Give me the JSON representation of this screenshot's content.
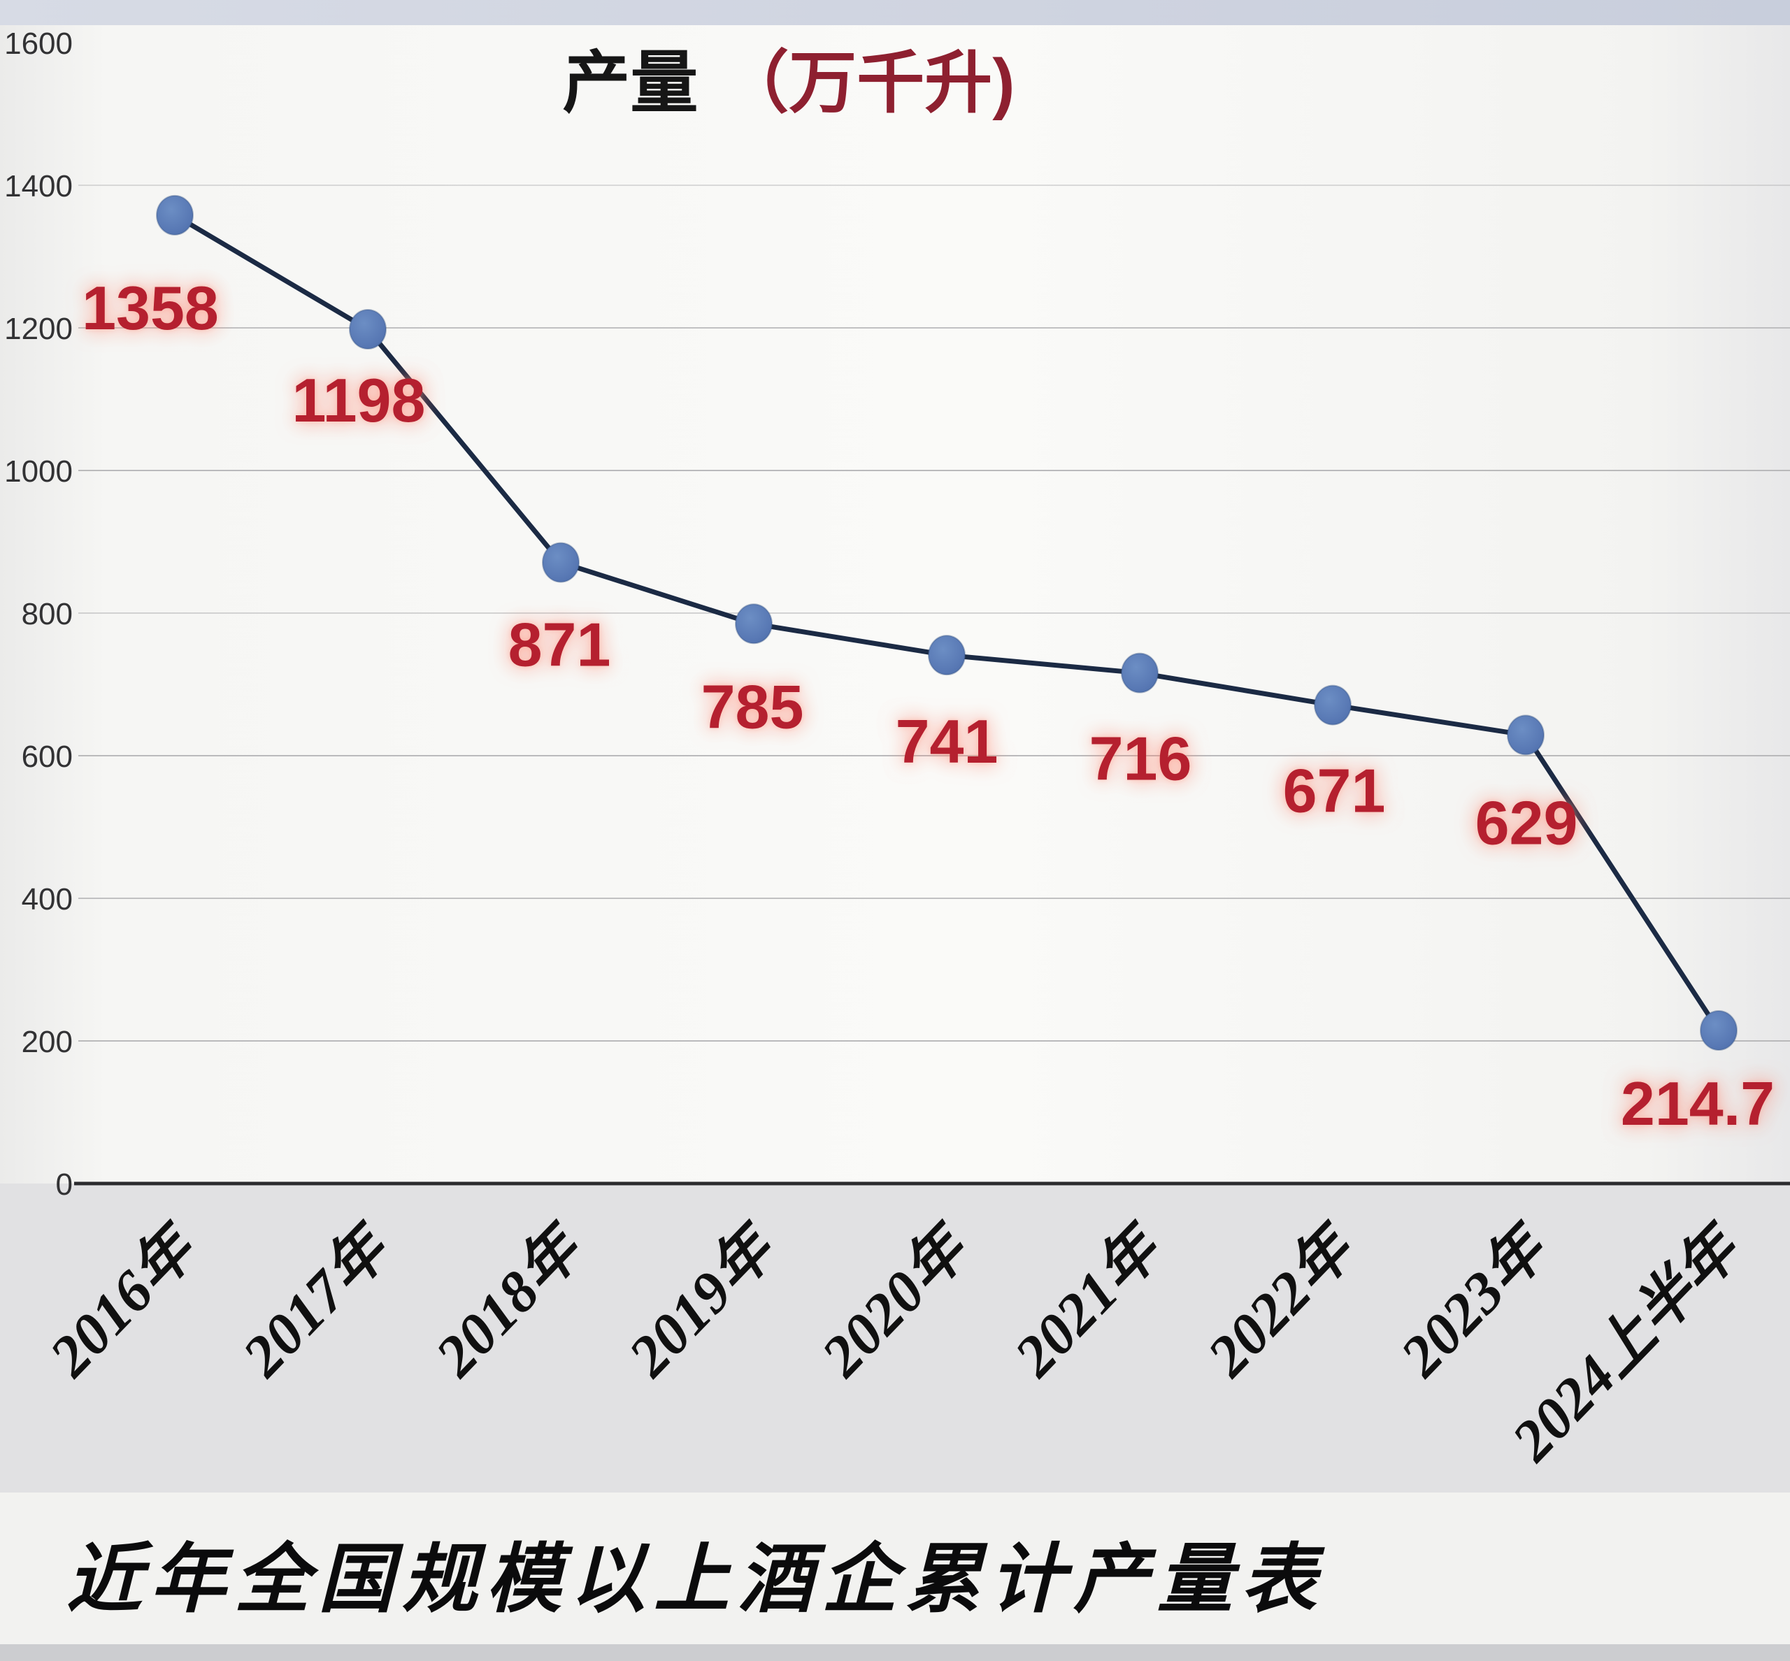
{
  "page": {
    "title_black": "产量",
    "title_red": "（万千升)",
    "caption": "近年全国规模以上酒企累计产量表"
  },
  "chart_data": {
    "type": "line",
    "title": "产量（万千升)",
    "categories": [
      "2016年",
      "2017年",
      "2018年",
      "2019年",
      "2020年",
      "2021年",
      "2022年",
      "2023年",
      "2024上半年"
    ],
    "series": [
      {
        "name": "产量",
        "values": [
          1358,
          1198,
          871,
          785,
          741,
          716,
          671,
          629,
          214.7
        ]
      }
    ],
    "value_labels": [
      "1358",
      "1198",
      "871",
      "785",
      "741",
      "716",
      "671",
      "629",
      "214.7"
    ],
    "xlabel": "",
    "ylabel": "",
    "ylim": [
      0,
      1600
    ],
    "yticks": [
      0,
      200,
      400,
      600,
      800,
      1000,
      1200,
      1400,
      1600
    ],
    "grid": true,
    "legend_position": "none",
    "colors": {
      "line": "#1b2a44",
      "marker_fill": "#5878b4",
      "marker_edge": "#33517f",
      "value_label": "#b5202f",
      "title_black": "#161616",
      "title_red": "#8e2030",
      "axis_line": "#2b2b2e",
      "gridline": "#b4b4b6",
      "y_tick_label": "#323234",
      "x_tick_label": "#101010",
      "caption": "#0b0b0c",
      "top_band": "#cdd2df",
      "page_bg": "#e3e4e6",
      "plot_bg": "#f8f8f6",
      "lower_bg": "#e1e1e3",
      "caption_strip": "#f2f2f0",
      "bottom_bar": "#cccdd0"
    }
  }
}
